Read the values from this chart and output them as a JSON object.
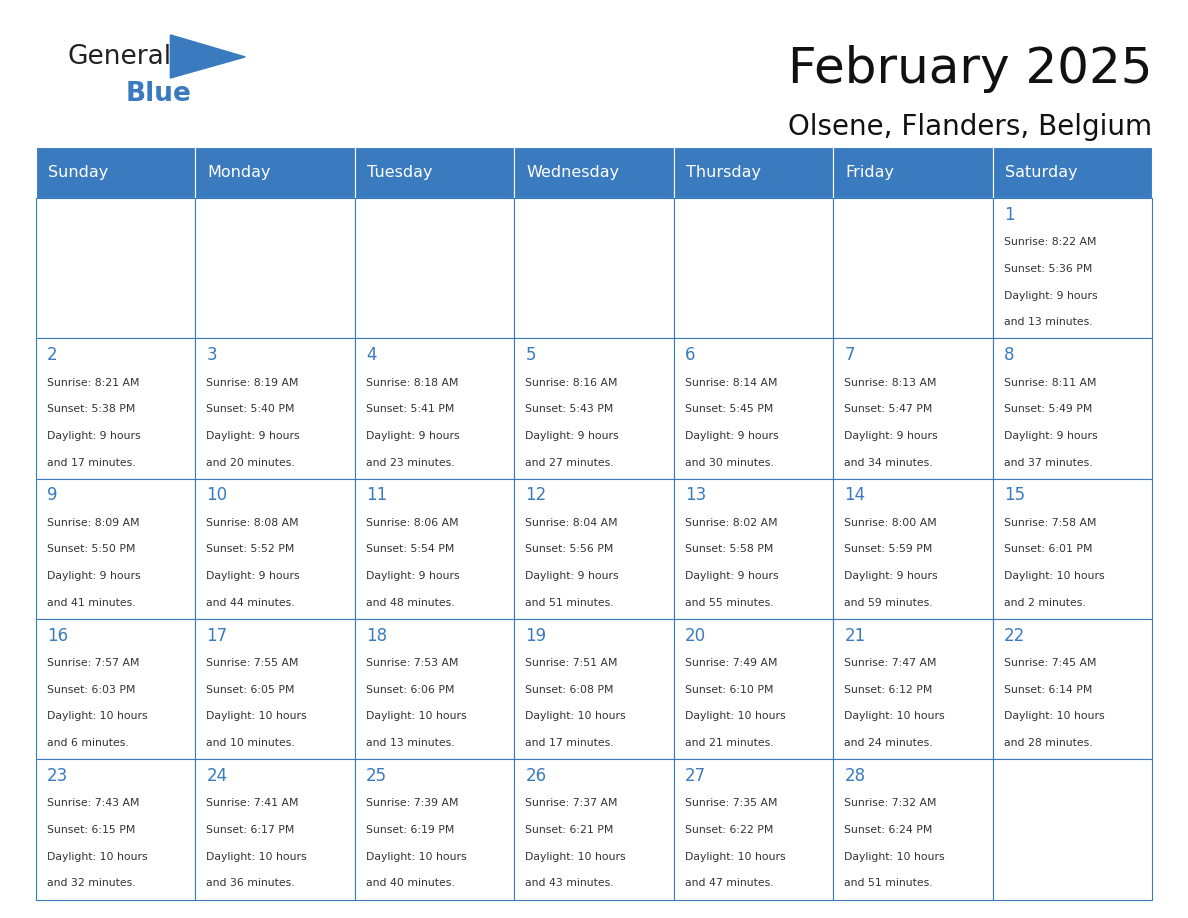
{
  "title": "February 2025",
  "subtitle": "Olsene, Flanders, Belgium",
  "header_color": "#3a7abf",
  "header_text_color": "#ffffff",
  "border_color": "#3a7abf",
  "text_color": "#333333",
  "days_of_week": [
    "Sunday",
    "Monday",
    "Tuesday",
    "Wednesday",
    "Thursday",
    "Friday",
    "Saturday"
  ],
  "weeks": [
    [
      {
        "day": "",
        "info": ""
      },
      {
        "day": "",
        "info": ""
      },
      {
        "day": "",
        "info": ""
      },
      {
        "day": "",
        "info": ""
      },
      {
        "day": "",
        "info": ""
      },
      {
        "day": "",
        "info": ""
      },
      {
        "day": "1",
        "info": "Sunrise: 8:22 AM\nSunset: 5:36 PM\nDaylight: 9 hours\nand 13 minutes."
      }
    ],
    [
      {
        "day": "2",
        "info": "Sunrise: 8:21 AM\nSunset: 5:38 PM\nDaylight: 9 hours\nand 17 minutes."
      },
      {
        "day": "3",
        "info": "Sunrise: 8:19 AM\nSunset: 5:40 PM\nDaylight: 9 hours\nand 20 minutes."
      },
      {
        "day": "4",
        "info": "Sunrise: 8:18 AM\nSunset: 5:41 PM\nDaylight: 9 hours\nand 23 minutes."
      },
      {
        "day": "5",
        "info": "Sunrise: 8:16 AM\nSunset: 5:43 PM\nDaylight: 9 hours\nand 27 minutes."
      },
      {
        "day": "6",
        "info": "Sunrise: 8:14 AM\nSunset: 5:45 PM\nDaylight: 9 hours\nand 30 minutes."
      },
      {
        "day": "7",
        "info": "Sunrise: 8:13 AM\nSunset: 5:47 PM\nDaylight: 9 hours\nand 34 minutes."
      },
      {
        "day": "8",
        "info": "Sunrise: 8:11 AM\nSunset: 5:49 PM\nDaylight: 9 hours\nand 37 minutes."
      }
    ],
    [
      {
        "day": "9",
        "info": "Sunrise: 8:09 AM\nSunset: 5:50 PM\nDaylight: 9 hours\nand 41 minutes."
      },
      {
        "day": "10",
        "info": "Sunrise: 8:08 AM\nSunset: 5:52 PM\nDaylight: 9 hours\nand 44 minutes."
      },
      {
        "day": "11",
        "info": "Sunrise: 8:06 AM\nSunset: 5:54 PM\nDaylight: 9 hours\nand 48 minutes."
      },
      {
        "day": "12",
        "info": "Sunrise: 8:04 AM\nSunset: 5:56 PM\nDaylight: 9 hours\nand 51 minutes."
      },
      {
        "day": "13",
        "info": "Sunrise: 8:02 AM\nSunset: 5:58 PM\nDaylight: 9 hours\nand 55 minutes."
      },
      {
        "day": "14",
        "info": "Sunrise: 8:00 AM\nSunset: 5:59 PM\nDaylight: 9 hours\nand 59 minutes."
      },
      {
        "day": "15",
        "info": "Sunrise: 7:58 AM\nSunset: 6:01 PM\nDaylight: 10 hours\nand 2 minutes."
      }
    ],
    [
      {
        "day": "16",
        "info": "Sunrise: 7:57 AM\nSunset: 6:03 PM\nDaylight: 10 hours\nand 6 minutes."
      },
      {
        "day": "17",
        "info": "Sunrise: 7:55 AM\nSunset: 6:05 PM\nDaylight: 10 hours\nand 10 minutes."
      },
      {
        "day": "18",
        "info": "Sunrise: 7:53 AM\nSunset: 6:06 PM\nDaylight: 10 hours\nand 13 minutes."
      },
      {
        "day": "19",
        "info": "Sunrise: 7:51 AM\nSunset: 6:08 PM\nDaylight: 10 hours\nand 17 minutes."
      },
      {
        "day": "20",
        "info": "Sunrise: 7:49 AM\nSunset: 6:10 PM\nDaylight: 10 hours\nand 21 minutes."
      },
      {
        "day": "21",
        "info": "Sunrise: 7:47 AM\nSunset: 6:12 PM\nDaylight: 10 hours\nand 24 minutes."
      },
      {
        "day": "22",
        "info": "Sunrise: 7:45 AM\nSunset: 6:14 PM\nDaylight: 10 hours\nand 28 minutes."
      }
    ],
    [
      {
        "day": "23",
        "info": "Sunrise: 7:43 AM\nSunset: 6:15 PM\nDaylight: 10 hours\nand 32 minutes."
      },
      {
        "day": "24",
        "info": "Sunrise: 7:41 AM\nSunset: 6:17 PM\nDaylight: 10 hours\nand 36 minutes."
      },
      {
        "day": "25",
        "info": "Sunrise: 7:39 AM\nSunset: 6:19 PM\nDaylight: 10 hours\nand 40 minutes."
      },
      {
        "day": "26",
        "info": "Sunrise: 7:37 AM\nSunset: 6:21 PM\nDaylight: 10 hours\nand 43 minutes."
      },
      {
        "day": "27",
        "info": "Sunrise: 7:35 AM\nSunset: 6:22 PM\nDaylight: 10 hours\nand 47 minutes."
      },
      {
        "day": "28",
        "info": "Sunrise: 7:32 AM\nSunset: 6:24 PM\nDaylight: 10 hours\nand 51 minutes."
      },
      {
        "day": "",
        "info": ""
      }
    ]
  ],
  "logo_text_general": "General",
  "logo_text_blue": "Blue",
  "logo_color_general": "#222222",
  "logo_color_blue": "#3a7abf",
  "logo_triangle_color": "#3a7abf"
}
